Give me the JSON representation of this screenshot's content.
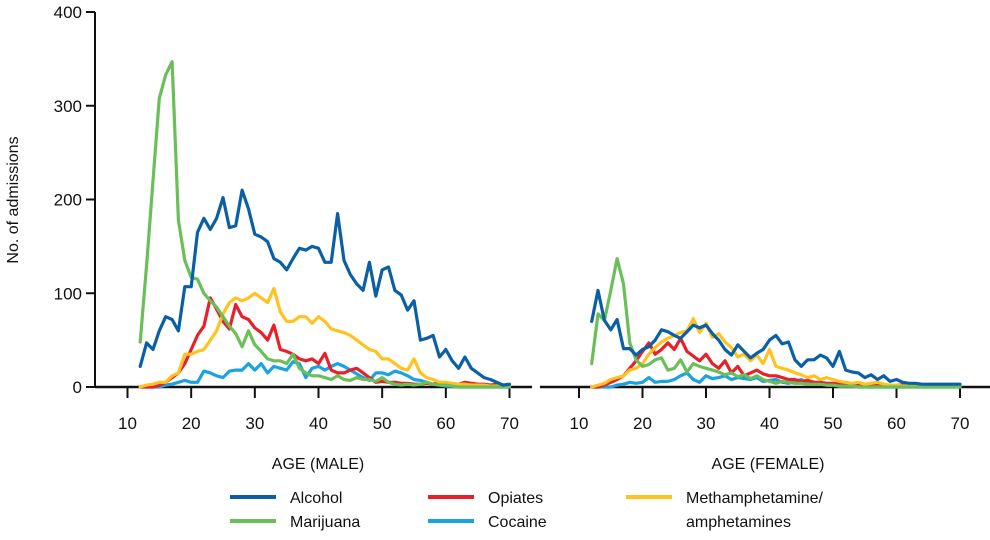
{
  "chart_data": [
    {
      "type": "line",
      "panel": "male",
      "xlabel": "AGE (MALE)",
      "ylabel": "No. of admissions",
      "xlim": [
        10,
        70
      ],
      "ylim": [
        0,
        400
      ],
      "xticks": [
        10,
        20,
        30,
        40,
        50,
        60,
        70
      ],
      "yticks": [
        0,
        100,
        200,
        300,
        400
      ],
      "x_start": 12,
      "x_end": 70,
      "series": [
        {
          "name": "Alcohol",
          "color": "#0B5FA5",
          "values": [
            22,
            47,
            40,
            60,
            75,
            72,
            60,
            107,
            107,
            165,
            180,
            168,
            180,
            202,
            170,
            172,
            210,
            190,
            163,
            160,
            155,
            137,
            133,
            125,
            137,
            148,
            146,
            150,
            148,
            133,
            133,
            185,
            135,
            120,
            110,
            103,
            133,
            97,
            125,
            128,
            103,
            98,
            82,
            92,
            50,
            52,
            55,
            32,
            40,
            28,
            20,
            32,
            20,
            15,
            10,
            8,
            5,
            2,
            3
          ]
        },
        {
          "name": "Marijuana",
          "color": "#6BBF59",
          "values": [
            48,
            130,
            220,
            308,
            333,
            347,
            178,
            135,
            117,
            115,
            100,
            92,
            85,
            75,
            65,
            57,
            43,
            60,
            45,
            38,
            30,
            28,
            28,
            25,
            35,
            20,
            15,
            12,
            12,
            10,
            8,
            12,
            8,
            7,
            10,
            8,
            8,
            6,
            10,
            5,
            3,
            2,
            3,
            2,
            3,
            5,
            3,
            2,
            2,
            1,
            0,
            0,
            0,
            0,
            0,
            0,
            0,
            0,
            0
          ]
        },
        {
          "name": "Opiates",
          "color": "#E8202A",
          "values": [
            0,
            0,
            0,
            2,
            5,
            10,
            15,
            25,
            40,
            55,
            65,
            95,
            83,
            70,
            62,
            88,
            75,
            72,
            63,
            58,
            50,
            66,
            40,
            38,
            35,
            30,
            28,
            30,
            25,
            36,
            18,
            15,
            15,
            18,
            20,
            15,
            10,
            5,
            6,
            5,
            5,
            4,
            4,
            3,
            3,
            4,
            3,
            5,
            4,
            3,
            3,
            5,
            4,
            3,
            3,
            2,
            3,
            2,
            2
          ]
        },
        {
          "name": "Cocaine",
          "color": "#1AA3E0",
          "values": [
            0,
            0,
            0,
            0,
            2,
            3,
            5,
            7,
            5,
            5,
            17,
            15,
            12,
            10,
            17,
            18,
            18,
            25,
            18,
            25,
            15,
            22,
            20,
            18,
            27,
            25,
            10,
            20,
            22,
            18,
            22,
            25,
            22,
            18,
            14,
            10,
            7,
            15,
            15,
            13,
            17,
            15,
            12,
            8,
            7,
            5,
            3,
            2,
            1,
            1,
            0,
            0,
            0,
            0,
            0,
            0,
            0,
            0,
            0
          ]
        },
        {
          "name": "Methamphetamine/ amphetamines",
          "color": "#FFC220",
          "values": [
            0,
            2,
            3,
            5,
            5,
            12,
            15,
            35,
            35,
            38,
            40,
            50,
            60,
            78,
            90,
            95,
            92,
            95,
            100,
            95,
            90,
            105,
            80,
            70,
            70,
            75,
            75,
            68,
            75,
            70,
            62,
            60,
            58,
            55,
            50,
            45,
            40,
            38,
            30,
            30,
            25,
            20,
            18,
            30,
            15,
            10,
            8,
            5,
            5,
            4,
            3,
            3,
            2,
            2,
            2,
            1,
            1,
            1,
            1
          ]
        }
      ]
    },
    {
      "type": "line",
      "panel": "female",
      "xlabel": "AGE (FEMALE)",
      "xlim": [
        10,
        70
      ],
      "ylim": [
        0,
        400
      ],
      "xticks": [
        10,
        20,
        30,
        40,
        50,
        60,
        70
      ],
      "x_start": 12,
      "x_end": 70,
      "series": [
        {
          "name": "Alcohol",
          "color": "#0B5FA5",
          "values": [
            70,
            103,
            71,
            61,
            72,
            41,
            41,
            34,
            40,
            43,
            50,
            61,
            59,
            55,
            52,
            59,
            66,
            63,
            66,
            57,
            50,
            40,
            34,
            45,
            38,
            31,
            36,
            40,
            50,
            55,
            46,
            48,
            29,
            22,
            29,
            29,
            34,
            31,
            22,
            38,
            18,
            16,
            15,
            10,
            13,
            8,
            12,
            6,
            8,
            5,
            4,
            4,
            3,
            3,
            3,
            3,
            3,
            3,
            3
          ]
        },
        {
          "name": "Marijuana",
          "color": "#6BBF59",
          "values": [
            25,
            78,
            71,
            103,
            137,
            110,
            47,
            29,
            22,
            24,
            29,
            31,
            18,
            20,
            29,
            16,
            25,
            22,
            20,
            18,
            16,
            13,
            15,
            11,
            13,
            9,
            12,
            8,
            6,
            4,
            6,
            5,
            4,
            4,
            3,
            3,
            3,
            2,
            2,
            1,
            1,
            1,
            0,
            0,
            0,
            0,
            0,
            0,
            0,
            0,
            0,
            0,
            0,
            0,
            0,
            0,
            0,
            0,
            0
          ]
        },
        {
          "name": "Opiates",
          "color": "#E8202A",
          "values": [
            0,
            0,
            2,
            5,
            8,
            12,
            20,
            28,
            38,
            47,
            35,
            40,
            47,
            40,
            52,
            38,
            33,
            28,
            35,
            25,
            20,
            28,
            15,
            22,
            12,
            15,
            18,
            14,
            12,
            12,
            10,
            8,
            8,
            6,
            7,
            5,
            5,
            4,
            4,
            3,
            3,
            3,
            2,
            2,
            2,
            2,
            2,
            2,
            2,
            2,
            2,
            2,
            2,
            2,
            2,
            1,
            1,
            1,
            1
          ]
        },
        {
          "name": "Cocaine",
          "color": "#1AA3E0",
          "values": [
            0,
            0,
            0,
            0,
            2,
            3,
            5,
            4,
            5,
            10,
            5,
            6,
            6,
            8,
            12,
            15,
            8,
            5,
            12,
            9,
            10,
            12,
            8,
            10,
            9,
            8,
            10,
            6,
            7,
            8,
            5,
            4,
            6,
            8,
            4,
            5,
            3,
            2,
            2,
            1,
            1,
            1,
            0,
            0,
            0,
            0,
            0,
            0,
            0,
            0,
            0,
            0,
            0,
            0,
            0,
            0,
            0,
            0,
            0
          ]
        },
        {
          "name": "Methamphetamine/ amphetamines",
          "color": "#FFC220",
          "values": [
            0,
            2,
            4,
            8,
            10,
            12,
            18,
            20,
            25,
            35,
            42,
            48,
            52,
            55,
            58,
            60,
            73,
            58,
            68,
            53,
            57,
            48,
            42,
            32,
            35,
            28,
            34,
            25,
            40,
            22,
            20,
            18,
            15,
            13,
            10,
            12,
            8,
            10,
            8,
            6,
            5,
            4,
            5,
            3,
            4,
            5,
            3,
            2,
            2,
            1,
            1,
            1,
            1,
            1,
            1,
            1,
            1,
            1,
            1
          ]
        }
      ]
    }
  ],
  "legend": {
    "items": [
      {
        "label": "Alcohol",
        "color": "#0B5FA5"
      },
      {
        "label": "Opiates",
        "color": "#E8202A"
      },
      {
        "label": "Methamphetamine/",
        "label_line2": "amphetamines",
        "color": "#FFC220"
      },
      {
        "label": "Marijuana",
        "color": "#6BBF59"
      },
      {
        "label": "Cocaine",
        "color": "#1AA3E0"
      }
    ]
  }
}
